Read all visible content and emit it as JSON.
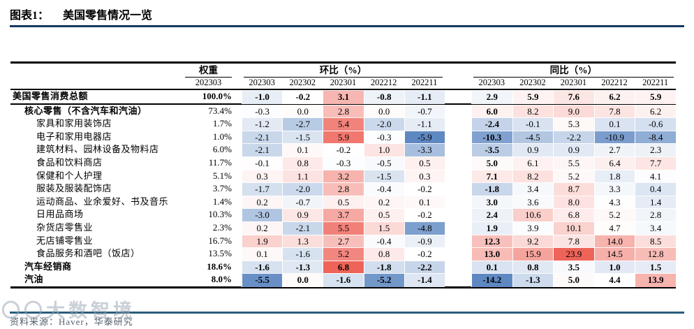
{
  "title": {
    "label": "图表1：",
    "text": "美国零售情况一览"
  },
  "footer": {
    "source": "资料来源：Haver，华泰研究",
    "watermark": "〇〇大数智境"
  },
  "chart_data": {
    "type": "table",
    "title": "美国零售情况一览",
    "column_groups": {
      "weight": "权重",
      "mom": "环比（%）",
      "yoy": "同比（%）"
    },
    "weight_period": "202303",
    "periods": [
      "202303",
      "202302",
      "202301",
      "202212",
      "202211"
    ],
    "color_scale": {
      "negative": "#5e88c2",
      "neutral": "#ffffff",
      "positive": "#ee6459",
      "mom": {
        "min": -5.9,
        "mid": -0.2,
        "max": 6.8
      },
      "yoy": {
        "min": -14.2,
        "mid": 4.4,
        "max": 23.9
      }
    },
    "rows": [
      {
        "label": "美国零售消费总额",
        "indent": 0,
        "bold": true,
        "rule_below": true,
        "weight": "100.0%",
        "mom": [
          -1.0,
          -0.2,
          3.1,
          -0.8,
          -1.1
        ],
        "yoy": [
          2.9,
          5.9,
          7.6,
          6.2,
          5.9
        ]
      },
      {
        "label": "核心零售（不含汽车和汽油）",
        "indent": 1,
        "bold_label": true,
        "weight": "73.4%",
        "mom": [
          -0.3,
          0.0,
          2.8,
          0.0,
          -0.7
        ],
        "yoy": [
          6.0,
          8.2,
          9.0,
          7.8,
          6.2
        ]
      },
      {
        "label": "家具和家用装饰店",
        "indent": 2,
        "weight": "1.7%",
        "mom": [
          -1.2,
          -2.7,
          5.4,
          -2.0,
          -1.1
        ],
        "yoy": [
          -2.4,
          -0.1,
          5.3,
          0.1,
          -0.6
        ]
      },
      {
        "label": "电子和家用电器店",
        "indent": 2,
        "weight": "1.0%",
        "mom": [
          -2.1,
          -1.5,
          5.9,
          -0.3,
          -5.9
        ],
        "yoy": [
          -10.3,
          -4.5,
          -2.2,
          -10.9,
          -8.4
        ]
      },
      {
        "label": "建筑材料、园林设备及物料店",
        "indent": 2,
        "weight": "6.0%",
        "mom": [
          -2.1,
          0.1,
          -0.2,
          1.0,
          -3.3
        ],
        "yoy": [
          -3.5,
          0.9,
          0.9,
          2.7,
          2.3
        ]
      },
      {
        "label": "食品和饮料商店",
        "indent": 2,
        "weight": "11.7%",
        "mom": [
          -0.1,
          0.8,
          -0.3,
          -0.5,
          0.5
        ],
        "yoy": [
          5.0,
          6.1,
          5.5,
          6.4,
          7.7
        ]
      },
      {
        "label": "保健和个人护理",
        "indent": 2,
        "weight": "5.1%",
        "mom": [
          0.3,
          1.1,
          3.2,
          -1.5,
          0.3
        ],
        "yoy": [
          7.1,
          8.2,
          5.2,
          1.8,
          4.1
        ]
      },
      {
        "label": "服装及服装配饰店",
        "indent": 2,
        "weight": "3.7%",
        "mom": [
          -1.7,
          -2.0,
          2.8,
          -0.4,
          -0.2
        ],
        "yoy": [
          -1.8,
          3.4,
          8.7,
          3.3,
          0.4
        ]
      },
      {
        "label": "运动商品、业余爱好、书及音乐",
        "indent": 2,
        "weight": "1.4%",
        "mom": [
          0.2,
          -0.7,
          0.5,
          0.2,
          0.1
        ],
        "yoy": [
          3.0,
          3.6,
          8.0,
          4.3,
          1.4
        ]
      },
      {
        "label": "日用品商场",
        "indent": 2,
        "weight": "10.3%",
        "mom": [
          -3.0,
          0.9,
          3.7,
          0.5,
          -0.2
        ],
        "yoy": [
          2.4,
          10.6,
          6.8,
          5.2,
          2.8
        ]
      },
      {
        "label": "杂货店零售业",
        "indent": 2,
        "weight": "2.3%",
        "mom": [
          0.2,
          -2.1,
          5.5,
          1.5,
          -4.8
        ],
        "yoy": [
          1.9,
          3.9,
          10.1,
          4.7,
          3.4
        ]
      },
      {
        "label": "无店铺零售业",
        "indent": 2,
        "weight": "16.7%",
        "mom": [
          1.9,
          1.3,
          2.7,
          -0.4,
          -0.9
        ],
        "yoy": [
          12.3,
          9.2,
          7.8,
          14.0,
          8.5
        ]
      },
      {
        "label": "食品服务和酒吧（饭店）",
        "indent": 2,
        "weight": "13.5%",
        "mom": [
          0.1,
          -1.6,
          5.2,
          0.8,
          -0.2
        ],
        "yoy": [
          13.0,
          15.9,
          23.9,
          14.5,
          12.8
        ]
      },
      {
        "label": "汽车经销商",
        "indent": 1,
        "bold": true,
        "weight": "18.6%",
        "mom": [
          -1.6,
          -1.3,
          6.8,
          -1.8,
          -2.2
        ],
        "yoy": [
          0.1,
          0.8,
          3.5,
          1.0,
          1.5
        ]
      },
      {
        "label": "汽油",
        "indent": 1,
        "bold": true,
        "weight": "8.0%",
        "mom": [
          -5.5,
          0.0,
          -1.6,
          -5.2,
          -1.4
        ],
        "yoy": [
          -14.2,
          -1.3,
          5.0,
          4.4,
          13.9
        ]
      }
    ]
  }
}
